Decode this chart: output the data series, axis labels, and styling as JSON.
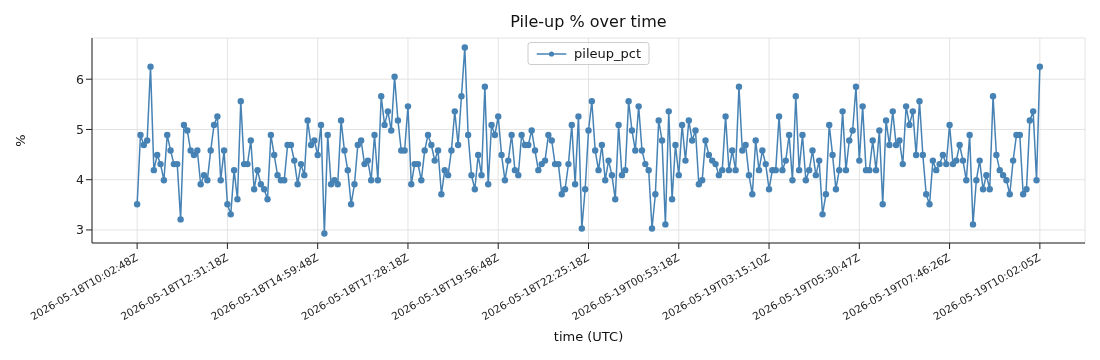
{
  "chart_data": {
    "type": "line",
    "title": "Pile-up % over time",
    "xlabel": "time (UTC)",
    "ylabel": "%",
    "categories": [
      "2026-05-18T10:02:48Z",
      null,
      null,
      null,
      null,
      null,
      null,
      null,
      null,
      null,
      null,
      null,
      null,
      null,
      null,
      null,
      null,
      null,
      null,
      null,
      null,
      null,
      null,
      null,
      null,
      null,
      null,
      "2026-05-18T12:31:18Z",
      null,
      null,
      null,
      null,
      null,
      null,
      null,
      null,
      null,
      null,
      null,
      null,
      null,
      null,
      null,
      null,
      null,
      null,
      null,
      null,
      null,
      null,
      null,
      null,
      null,
      null,
      "2026-05-18T14:59:48Z",
      null,
      null,
      null,
      null,
      null,
      null,
      null,
      null,
      null,
      null,
      null,
      null,
      null,
      null,
      null,
      null,
      null,
      null,
      null,
      null,
      null,
      null,
      null,
      null,
      null,
      null,
      "2026-05-18T17:28:18Z",
      null,
      null,
      null,
      null,
      null,
      null,
      null,
      null,
      null,
      null,
      null,
      null,
      null,
      null,
      null,
      null,
      null,
      null,
      null,
      null,
      null,
      null,
      null,
      null,
      null,
      null,
      "2026-05-18T19:56:48Z",
      null,
      null,
      null,
      null,
      null,
      null,
      null,
      null,
      null,
      null,
      null,
      null,
      null,
      null,
      null,
      null,
      null,
      null,
      null,
      null,
      null,
      null,
      null,
      null,
      null,
      null,
      "2026-05-18T22:25:18Z",
      null,
      null,
      null,
      null,
      null,
      null,
      null,
      null,
      null,
      null,
      null,
      null,
      null,
      null,
      null,
      null,
      null,
      null,
      null,
      null,
      null,
      null,
      null,
      null,
      null,
      null,
      "2026-05-19T00:53:18Z",
      null,
      null,
      null,
      null,
      null,
      null,
      null,
      null,
      null,
      null,
      null,
      null,
      null,
      null,
      null,
      null,
      null,
      null,
      null,
      null,
      null,
      null,
      null,
      null,
      null,
      null,
      "2026-05-19T03:15:10Z",
      null,
      null,
      null,
      null,
      null,
      null,
      null,
      null,
      null,
      null,
      null,
      null,
      null,
      null,
      null,
      null,
      null,
      null,
      null,
      null,
      null,
      null,
      null,
      null,
      null,
      null,
      "2026-05-19T05:30:47Z",
      null,
      null,
      null,
      null,
      null,
      null,
      null,
      null,
      null,
      null,
      null,
      null,
      null,
      null,
      null,
      null,
      null,
      null,
      null,
      null,
      null,
      null,
      null,
      null,
      null,
      null,
      "2026-05-19T07:46:26Z",
      null,
      null,
      null,
      null,
      null,
      null,
      null,
      null,
      null,
      null,
      null,
      null,
      null,
      null,
      null,
      null,
      null,
      null,
      null,
      null,
      null,
      null,
      null,
      null,
      null,
      null,
      "2026-05-19T10:02:05Z"
    ],
    "series": [
      {
        "name": "pileup_pct",
        "color": "#4682b4",
        "values": [
          3.51,
          4.89,
          4.69,
          4.78,
          6.25,
          4.19,
          4.49,
          4.31,
          3.99,
          4.89,
          4.58,
          4.31,
          4.31,
          3.21,
          5.09,
          4.98,
          4.58,
          4.49,
          4.58,
          3.91,
          4.09,
          3.99,
          4.58,
          5.09,
          5.26,
          3.99,
          4.58,
          3.51,
          3.31,
          4.19,
          3.61,
          5.56,
          4.31,
          4.31,
          4.78,
          3.81,
          4.19,
          3.91,
          3.81,
          3.61,
          4.89,
          4.49,
          4.09,
          3.99,
          3.99,
          4.69,
          4.69,
          4.38,
          3.91,
          4.31,
          4.09,
          5.18,
          4.69,
          4.78,
          4.49,
          5.09,
          2.93,
          4.89,
          3.91,
          3.99,
          3.91,
          5.18,
          4.58,
          4.19,
          3.51,
          3.91,
          4.69,
          4.78,
          4.31,
          4.38,
          3.99,
          4.89,
          3.99,
          5.66,
          5.09,
          5.36,
          4.98,
          6.05,
          5.18,
          4.58,
          4.58,
          5.46,
          3.91,
          4.31,
          4.31,
          3.99,
          4.58,
          4.89,
          4.69,
          4.38,
          4.58,
          3.71,
          4.19,
          4.09,
          4.58,
          5.36,
          4.69,
          5.66,
          6.63,
          4.89,
          4.09,
          3.81,
          4.49,
          4.09,
          5.85,
          3.91,
          5.09,
          4.89,
          5.26,
          4.49,
          3.99,
          4.38,
          4.89,
          4.19,
          4.09,
          4.89,
          4.69,
          4.69,
          4.98,
          4.58,
          4.19,
          4.31,
          4.38,
          4.89,
          4.78,
          4.31,
          4.31,
          3.71,
          3.81,
          4.31,
          5.09,
          3.91,
          5.26,
          3.03,
          3.81,
          4.98,
          5.56,
          4.58,
          4.19,
          4.69,
          3.99,
          4.38,
          4.09,
          3.61,
          5.09,
          4.09,
          4.19,
          5.56,
          4.98,
          4.58,
          5.46,
          4.58,
          4.31,
          4.19,
          3.03,
          3.71,
          5.18,
          4.78,
          3.11,
          5.36,
          3.61,
          4.69,
          4.09,
          5.09,
          4.38,
          5.18,
          4.78,
          4.98,
          3.91,
          3.99,
          4.78,
          4.49,
          4.38,
          4.31,
          4.09,
          4.19,
          5.26,
          4.19,
          4.58,
          4.19,
          5.85,
          4.58,
          4.69,
          4.09,
          3.71,
          4.78,
          4.19,
          4.58,
          4.31,
          3.81,
          4.19,
          4.19,
          5.26,
          4.19,
          4.38,
          4.89,
          3.99,
          5.66,
          4.19,
          4.89,
          3.99,
          4.19,
          4.58,
          4.09,
          4.38,
          3.31,
          3.71,
          5.09,
          4.49,
          3.81,
          4.19,
          5.36,
          4.19,
          4.78,
          4.98,
          5.85,
          4.38,
          5.46,
          4.19,
          4.19,
          4.78,
          4.19,
          4.98,
          3.51,
          5.18,
          4.69,
          5.36,
          4.69,
          4.78,
          4.31,
          5.46,
          5.09,
          5.36,
          4.49,
          5.56,
          4.49,
          3.71,
          3.51,
          4.38,
          4.19,
          4.31,
          4.49,
          4.31,
          5.09,
          4.31,
          4.38,
          4.69,
          4.38,
          3.99,
          4.89,
          3.11,
          3.99,
          4.38,
          3.81,
          4.09,
          3.81,
          5.66,
          4.49,
          4.19,
          4.09,
          3.99,
          3.71,
          4.38,
          4.89,
          4.89,
          3.71,
          3.81,
          5.18,
          5.36,
          3.99,
          6.25
        ]
      }
    ],
    "ylim": [
      2.74,
      6.82
    ],
    "yticks": [
      3,
      4,
      5,
      6
    ],
    "grid": true,
    "legend": "top",
    "marker": "circle",
    "line_style": "solid"
  }
}
